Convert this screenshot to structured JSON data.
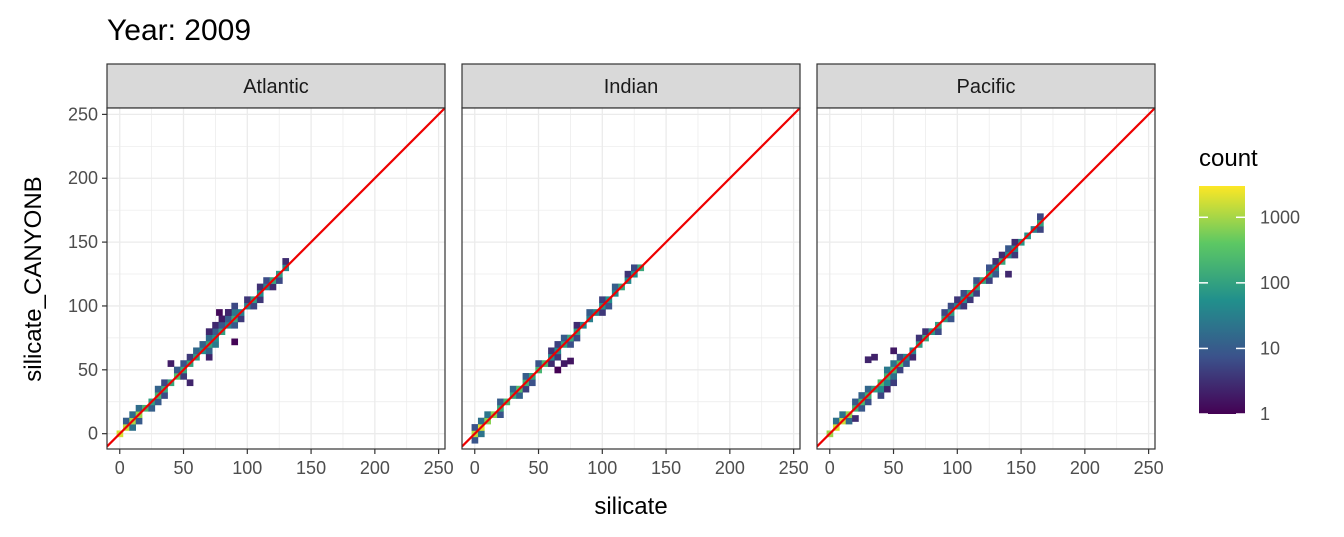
{
  "chart_data": {
    "type": "heatmap",
    "title": "Year: 2009",
    "xlabel": "silicate",
    "ylabel": "silicate_CANYONB",
    "xlim": [
      -10,
      255
    ],
    "ylim": [
      -12,
      255
    ],
    "x_ticks": [
      0,
      50,
      100,
      150,
      200,
      250
    ],
    "y_ticks": [
      0,
      50,
      100,
      150,
      200,
      250
    ],
    "grid": true,
    "reference_line": {
      "slope": 1,
      "intercept": 0,
      "color": "#ee0000"
    },
    "legend": {
      "title": "count",
      "scale": "log",
      "range": [
        1,
        3000
      ],
      "ticks": [
        1,
        10,
        100,
        1000
      ],
      "tick_labels": [
        "1",
        "10",
        "100",
        "1000"
      ],
      "palette": [
        "#440154",
        "#3b528b",
        "#21908c",
        "#5dc863",
        "#fde725"
      ],
      "position": "right"
    },
    "panels": [
      {
        "name": "Atlantic",
        "max": 130,
        "spread": [
          [
            0,
            2
          ],
          [
            20,
            3
          ],
          [
            50,
            6
          ],
          [
            70,
            9
          ],
          [
            100,
            7
          ],
          [
            130,
            5
          ]
        ],
        "outliers": [
          [
            70,
            80
          ],
          [
            85,
            95
          ],
          [
            55,
            40
          ],
          [
            40,
            55
          ],
          [
            90,
            72
          ],
          [
            78,
            95
          ]
        ]
      },
      {
        "name": "Indian",
        "max": 133,
        "spread": [
          [
            0,
            2
          ],
          [
            40,
            3
          ],
          [
            70,
            5
          ],
          [
            100,
            4
          ],
          [
            133,
            3
          ]
        ],
        "outliers": [
          [
            70,
            55
          ],
          [
            75,
            57
          ],
          [
            65,
            50
          ]
        ]
      },
      {
        "name": "Pacific",
        "max": 168,
        "spread": [
          [
            0,
            3
          ],
          [
            20,
            5
          ],
          [
            40,
            8
          ],
          [
            60,
            7
          ],
          [
            100,
            5
          ],
          [
            140,
            5
          ],
          [
            168,
            3
          ]
        ],
        "outliers": [
          [
            30,
            58
          ],
          [
            50,
            65
          ],
          [
            35,
            60
          ],
          [
            20,
            12
          ],
          [
            140,
            125
          ],
          [
            145,
            150
          ]
        ]
      }
    ]
  }
}
